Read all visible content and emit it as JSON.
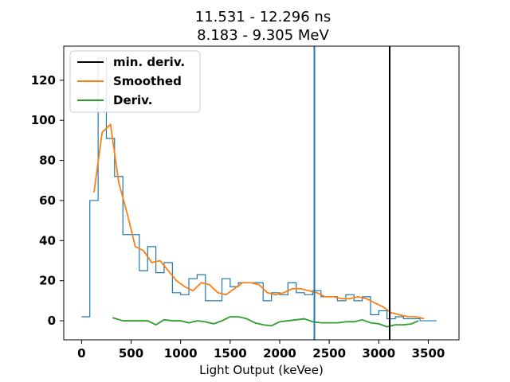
{
  "chart_data": {
    "type": "line",
    "title_line1": "11.531 - 12.296 ns",
    "title_line2": "8.183 - 9.305 MeV",
    "xlabel": "Light Output (keVee)",
    "ylabel": "",
    "xlim": [
      -180,
      3810
    ],
    "ylim": [
      -9.5,
      137
    ],
    "xticks": [
      0,
      500,
      1000,
      1500,
      2000,
      2500,
      3000,
      3500
    ],
    "yticks": [
      0,
      20,
      40,
      60,
      80,
      100,
      120
    ],
    "legend_position": "top-left",
    "grid": false,
    "legend": [
      {
        "label": "min. deriv.",
        "color": "#000000"
      },
      {
        "label": "Smoothed",
        "color": "#ff7f0e"
      },
      {
        "label": "Deriv.",
        "color": "#2ca02c"
      }
    ],
    "histogram": {
      "color": "#1f77b4",
      "bin_edges": [
        0,
        83,
        167,
        250,
        333,
        417,
        500,
        583,
        667,
        750,
        833,
        917,
        1000,
        1083,
        1167,
        1250,
        1333,
        1417,
        1500,
        1583,
        1667,
        1750,
        1833,
        1917,
        2000,
        2083,
        2167,
        2250,
        2333,
        2417,
        2500,
        2583,
        2667,
        2750,
        2833,
        2917,
        3000,
        3083,
        3167,
        3250,
        3333,
        3417,
        3500,
        3583
      ],
      "counts": [
        2,
        60,
        131,
        91,
        72,
        43,
        43,
        25,
        37,
        24,
        29,
        14,
        13,
        21,
        23,
        10,
        10,
        21,
        17,
        19,
        19,
        19,
        10,
        14,
        13,
        19,
        14,
        13,
        15,
        12,
        12,
        10,
        13,
        10,
        12,
        3,
        5,
        1,
        2,
        1,
        1,
        0,
        0
      ]
    },
    "series": [
      {
        "name": "Smoothed",
        "color": "#ff7f0e",
        "x": [
          125,
          208,
          292,
          375,
          458,
          542,
          625,
          708,
          792,
          875,
          958,
          1042,
          1125,
          1208,
          1292,
          1375,
          1458,
          1542,
          1625,
          1708,
          1792,
          1875,
          1958,
          2042,
          2125,
          2208,
          2292,
          2375,
          2458,
          2542,
          2625,
          2708,
          2792,
          2875,
          2958,
          3042,
          3125,
          3208,
          3292,
          3375,
          3458
        ],
        "y": [
          64,
          94,
          98,
          69,
          54,
          37,
          35,
          29,
          30,
          25,
          20,
          17,
          15,
          19,
          18,
          14,
          13,
          16,
          19,
          19,
          18,
          14,
          13,
          14,
          16,
          16,
          15,
          14,
          12,
          12,
          11,
          11,
          12,
          11,
          9,
          7,
          4,
          3,
          2,
          2,
          1
        ]
      },
      {
        "name": "Deriv.",
        "color": "#2ca02c",
        "x": [
          313,
          417,
          500,
          583,
          667,
          750,
          833,
          917,
          1000,
          1083,
          1167,
          1250,
          1333,
          1417,
          1500,
          1583,
          1667,
          1750,
          1833,
          1917,
          2000,
          2083,
          2167,
          2250,
          2333,
          2417,
          2500,
          2583,
          2667,
          2750,
          2833,
          2917,
          3000,
          3083,
          3167,
          3250,
          3333,
          3400
        ],
        "y": [
          1.5,
          0,
          0,
          0,
          0,
          -2,
          0.5,
          0,
          0,
          -1,
          0,
          -0.5,
          -1.5,
          0,
          2,
          2,
          1,
          -1,
          -2,
          -2.5,
          -0.5,
          0,
          0.5,
          1,
          -0.5,
          -1,
          -1,
          -1,
          -0.5,
          -0.5,
          0.5,
          -1,
          -1.5,
          -3,
          -2,
          -2,
          -1.5,
          0
        ]
      }
    ],
    "vlines": [
      {
        "x": 2350,
        "color": "#1f77b4"
      },
      {
        "x": 3110,
        "color": "#000000"
      }
    ]
  }
}
